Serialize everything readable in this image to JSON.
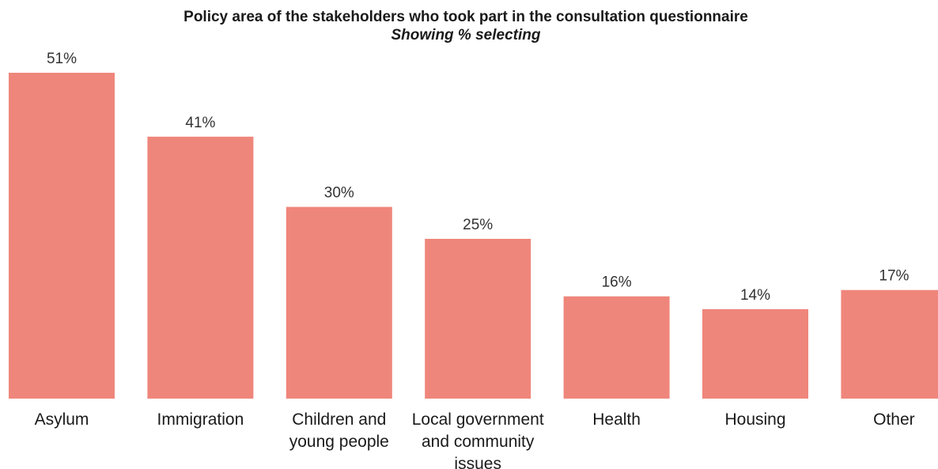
{
  "chart_data": {
    "type": "bar",
    "title": "Policy area of the stakeholders who took part in the consultation questionnaire",
    "subtitle": "Showing % selecting",
    "categories": [
      [
        "Asylum"
      ],
      [
        "Immigration"
      ],
      [
        "Children and",
        "young people"
      ],
      [
        "Local government",
        "and community",
        "issues"
      ],
      [
        "Health"
      ],
      [
        "Housing"
      ],
      [
        "Other"
      ]
    ],
    "values": [
      51,
      41,
      30,
      25,
      16,
      14,
      17
    ],
    "value_labels": [
      "51%",
      "41%",
      "30%",
      "25%",
      "16%",
      "14%",
      "17%"
    ],
    "ylim": [
      0,
      51
    ],
    "bar_color": "#ef867b",
    "grid": false,
    "legend": false
  }
}
